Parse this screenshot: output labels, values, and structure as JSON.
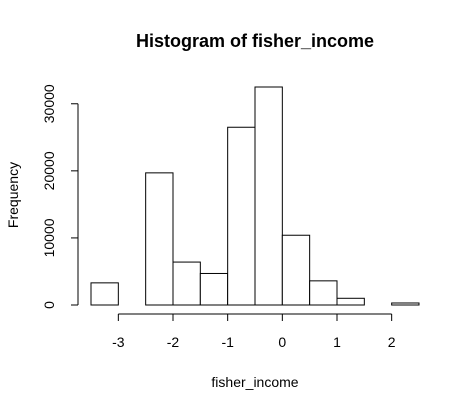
{
  "chart_data": {
    "type": "bar",
    "title": "Histogram of fisher_income",
    "xlabel": "fisher_income",
    "ylabel": "Frequency",
    "bin_edges": [
      -3.5,
      -3.0,
      -2.5,
      -2.0,
      -1.5,
      -1.0,
      -0.5,
      0.0,
      0.5,
      1.0,
      1.5,
      2.0,
      2.5
    ],
    "frequencies": [
      3300,
      0,
      19700,
      6400,
      4700,
      26500,
      32500,
      10400,
      3600,
      1000,
      0,
      300
    ],
    "xticks": [
      -3,
      -2,
      -1,
      0,
      1,
      2
    ],
    "xtick_labels": [
      "-3",
      "-2",
      "-1",
      "0",
      "1",
      "2"
    ],
    "yticks": [
      0,
      10000,
      20000,
      30000
    ],
    "ytick_labels": [
      "0",
      "10000",
      "20000",
      "30000"
    ],
    "xlim": [
      -3.5,
      2.5
    ],
    "ylim": [
      0,
      32500
    ],
    "grid": false,
    "colors": {
      "bar_fill": "#ffffff",
      "bar_stroke": "#000000",
      "axis": "#000000",
      "background": "#ffffff"
    }
  }
}
